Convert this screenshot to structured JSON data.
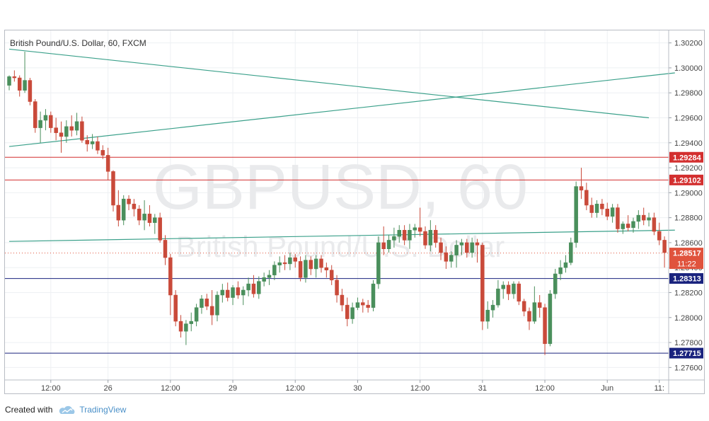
{
  "footer": {
    "created_with": "Created with",
    "brand": "TradingView",
    "logo_icon": "tradingview-cloud-icon"
  },
  "chart_data": {
    "type": "candlestick",
    "title": "British Pound/U.S. Dollar, 60, FXCM",
    "watermark": {
      "symbol": "GBPUSD, 60",
      "description": "British Pound/U.S. Dollar"
    },
    "ylim": [
      1.275,
      1.303
    ],
    "y_ticks": [
      "1.30200",
      "1.30000",
      "1.29800",
      "1.29600",
      "1.29400",
      "1.29200",
      "1.29000",
      "1.28800",
      "1.28600",
      "1.28400",
      "1.28200",
      "1.28000",
      "1.27800",
      "1.27600"
    ],
    "x_ticks": [
      {
        "bar": 8,
        "label": "12:00"
      },
      {
        "bar": 19,
        "label": "26"
      },
      {
        "bar": 31,
        "label": "12:00"
      },
      {
        "bar": 43,
        "label": "29"
      },
      {
        "bar": 55,
        "label": "12:00"
      },
      {
        "bar": 67,
        "label": "30"
      },
      {
        "bar": 79,
        "label": "12:00"
      },
      {
        "bar": 91,
        "label": "31"
      },
      {
        "bar": 103,
        "label": "12:00"
      },
      {
        "bar": 115,
        "label": "Jun"
      },
      {
        "bar": 125,
        "label": "11:"
      }
    ],
    "price_labels": [
      {
        "value": 1.29284,
        "text": "1.29284",
        "color": "#d32f2f",
        "line": true
      },
      {
        "value": 1.29102,
        "text": "1.29102",
        "color": "#d32f2f",
        "line": true
      },
      {
        "value": 1.28517,
        "text": "1.28517",
        "color": "#e0533d",
        "line": false,
        "countdown": "11:22"
      },
      {
        "value": 1.28313,
        "text": "1.28313",
        "color": "#1a237e",
        "line": true
      },
      {
        "value": 1.27715,
        "text": "1.27715",
        "color": "#1a237e",
        "line": true
      }
    ],
    "trend_lines": [
      {
        "x1": 0,
        "y1": 1.3015,
        "x2": 123,
        "y2": 1.296
      },
      {
        "x1": 0,
        "y1": 1.2937,
        "x2": 128,
        "y2": 1.2996
      },
      {
        "x1": 0,
        "y1": 1.2861,
        "x2": 128,
        "y2": 1.287
      }
    ],
    "colors": {
      "up": "#4a8f5c",
      "down": "#c94a3a",
      "trend": "#3aa08a",
      "grid": "#eef0f3"
    },
    "ohlc": [
      [
        1.2986,
        1.2994,
        1.2982,
        1.2993
      ],
      [
        1.2993,
        1.2998,
        1.2989,
        1.2992
      ],
      [
        1.2992,
        1.2994,
        1.2977,
        1.2982
      ],
      [
        1.2982,
        1.3013,
        1.298,
        1.299
      ],
      [
        1.299,
        1.2992,
        1.297,
        1.2973
      ],
      [
        1.2973,
        1.2975,
        1.2948,
        1.2952
      ],
      [
        1.2952,
        1.2965,
        1.294,
        1.2958
      ],
      [
        1.2958,
        1.2967,
        1.295,
        1.2962
      ],
      [
        1.2962,
        1.2965,
        1.2948,
        1.2952
      ],
      [
        1.2952,
        1.296,
        1.2942,
        1.2948
      ],
      [
        1.2948,
        1.2957,
        1.2932,
        1.2945
      ],
      [
        1.2945,
        1.2958,
        1.294,
        1.2953
      ],
      [
        1.2953,
        1.2962,
        1.2945,
        1.295
      ],
      [
        1.295,
        1.2964,
        1.2946,
        1.2957
      ],
      [
        1.2957,
        1.2961,
        1.294,
        1.2942
      ],
      [
        1.2942,
        1.2946,
        1.2933,
        1.2939
      ],
      [
        1.2939,
        1.2947,
        1.2935,
        1.2941
      ],
      [
        1.2941,
        1.2945,
        1.2931,
        1.2934
      ],
      [
        1.2934,
        1.2938,
        1.2927,
        1.293
      ],
      [
        1.293,
        1.2936,
        1.291,
        1.2917
      ],
      [
        1.2917,
        1.2918,
        1.2885,
        1.289
      ],
      [
        1.289,
        1.2902,
        1.2873,
        1.2878
      ],
      [
        1.2878,
        1.2898,
        1.2874,
        1.2895
      ],
      [
        1.2895,
        1.2898,
        1.2886,
        1.2891
      ],
      [
        1.2891,
        1.2895,
        1.2881,
        1.2887
      ],
      [
        1.2887,
        1.289,
        1.2874,
        1.2878
      ],
      [
        1.2878,
        1.2894,
        1.287,
        1.2883
      ],
      [
        1.2883,
        1.289,
        1.2873,
        1.2876
      ],
      [
        1.2876,
        1.2883,
        1.2867,
        1.288
      ],
      [
        1.288,
        1.2884,
        1.286,
        1.2862
      ],
      [
        1.2862,
        1.2866,
        1.2842,
        1.2848
      ],
      [
        1.2848,
        1.2851,
        1.2802,
        1.2818
      ],
      [
        1.2818,
        1.2822,
        1.2793,
        1.2797
      ],
      [
        1.2797,
        1.2802,
        1.2784,
        1.2789
      ],
      [
        1.2789,
        1.2798,
        1.2778,
        1.2795
      ],
      [
        1.2795,
        1.2804,
        1.2789,
        1.2797
      ],
      [
        1.2797,
        1.2811,
        1.2793,
        1.2808
      ],
      [
        1.2808,
        1.2818,
        1.2803,
        1.2815
      ],
      [
        1.2815,
        1.2819,
        1.2806,
        1.2809
      ],
      [
        1.2809,
        1.2822,
        1.2794,
        1.2802
      ],
      [
        1.2802,
        1.2821,
        1.2797,
        1.2818
      ],
      [
        1.2818,
        1.2827,
        1.2812,
        1.2822
      ],
      [
        1.2822,
        1.2828,
        1.2813,
        1.2816
      ],
      [
        1.2816,
        1.2826,
        1.281,
        1.2824
      ],
      [
        1.2824,
        1.2829,
        1.2815,
        1.2818
      ],
      [
        1.2818,
        1.2825,
        1.281,
        1.2822
      ],
      [
        1.2822,
        1.2832,
        1.2817,
        1.2827
      ],
      [
        1.2827,
        1.2834,
        1.2816,
        1.2819
      ],
      [
        1.2819,
        1.2833,
        1.2815,
        1.2829
      ],
      [
        1.2829,
        1.2836,
        1.2825,
        1.2832
      ],
      [
        1.2832,
        1.2838,
        1.2826,
        1.2834
      ],
      [
        1.2834,
        1.2845,
        1.283,
        1.2842
      ],
      [
        1.2842,
        1.2849,
        1.2836,
        1.2844
      ],
      [
        1.2844,
        1.285,
        1.2838,
        1.2843
      ],
      [
        1.2843,
        1.2852,
        1.2838,
        1.2848
      ],
      [
        1.2848,
        1.2851,
        1.284,
        1.2845
      ],
      [
        1.2845,
        1.2849,
        1.2829,
        1.2832
      ],
      [
        1.2832,
        1.285,
        1.2828,
        1.2846
      ],
      [
        1.2846,
        1.2849,
        1.2834,
        1.2839
      ],
      [
        1.2839,
        1.285,
        1.2832,
        1.2847
      ],
      [
        1.2847,
        1.285,
        1.2836,
        1.284
      ],
      [
        1.284,
        1.2844,
        1.2832,
        1.2838
      ],
      [
        1.2838,
        1.2842,
        1.2826,
        1.283
      ],
      [
        1.283,
        1.2834,
        1.2812,
        1.2818
      ],
      [
        1.2818,
        1.2823,
        1.2805,
        1.281
      ],
      [
        1.281,
        1.2816,
        1.2793,
        1.2799
      ],
      [
        1.2799,
        1.2812,
        1.2795,
        1.2808
      ],
      [
        1.2808,
        1.2816,
        1.2806,
        1.2812
      ],
      [
        1.2812,
        1.2815,
        1.2804,
        1.281
      ],
      [
        1.281,
        1.2814,
        1.2804,
        1.2808
      ],
      [
        1.2808,
        1.283,
        1.2805,
        1.2827
      ],
      [
        1.2827,
        1.2865,
        1.2823,
        1.286
      ],
      [
        1.286,
        1.2873,
        1.285,
        1.2855
      ],
      [
        1.2855,
        1.2866,
        1.2852,
        1.2862
      ],
      [
        1.2862,
        1.2872,
        1.2856,
        1.2865
      ],
      [
        1.2865,
        1.2874,
        1.286,
        1.287
      ],
      [
        1.287,
        1.2874,
        1.2858,
        1.2862
      ],
      [
        1.2862,
        1.2875,
        1.2855,
        1.287
      ],
      [
        1.287,
        1.2875,
        1.2864,
        1.2872
      ],
      [
        1.2872,
        1.2888,
        1.2865,
        1.2869
      ],
      [
        1.2869,
        1.2873,
        1.2855,
        1.2858
      ],
      [
        1.2858,
        1.2878,
        1.2853,
        1.287
      ],
      [
        1.287,
        1.2874,
        1.2856,
        1.286
      ],
      [
        1.286,
        1.2864,
        1.2846,
        1.2852
      ],
      [
        1.2852,
        1.2857,
        1.2839,
        1.2845
      ],
      [
        1.2845,
        1.2853,
        1.284,
        1.285
      ],
      [
        1.285,
        1.2862,
        1.284,
        1.2858
      ],
      [
        1.2858,
        1.2863,
        1.285,
        1.286
      ],
      [
        1.286,
        1.2863,
        1.2848,
        1.2852
      ],
      [
        1.2852,
        1.2864,
        1.2848,
        1.286
      ],
      [
        1.286,
        1.2863,
        1.2844,
        1.2858
      ],
      [
        1.2858,
        1.286,
        1.279,
        1.2797
      ],
      [
        1.2797,
        1.2813,
        1.2791,
        1.2806
      ],
      [
        1.2806,
        1.2814,
        1.28,
        1.281
      ],
      [
        1.281,
        1.283,
        1.2808,
        1.2823
      ],
      [
        1.2823,
        1.2829,
        1.2815,
        1.2826
      ],
      [
        1.2826,
        1.2829,
        1.2814,
        1.2819
      ],
      [
        1.2819,
        1.2829,
        1.2815,
        1.2827
      ],
      [
        1.2827,
        1.2829,
        1.281,
        1.2813
      ],
      [
        1.2813,
        1.2815,
        1.2801,
        1.2805
      ],
      [
        1.2805,
        1.2808,
        1.279,
        1.2797
      ],
      [
        1.2797,
        1.2825,
        1.2795,
        1.2812
      ],
      [
        1.2812,
        1.2818,
        1.28,
        1.2808
      ],
      [
        1.2808,
        1.2811,
        1.277,
        1.2779
      ],
      [
        1.2779,
        1.2822,
        1.2777,
        1.2819
      ],
      [
        1.2819,
        1.2839,
        1.2815,
        1.2835
      ],
      [
        1.2835,
        1.2846,
        1.283,
        1.284
      ],
      [
        1.284,
        1.285,
        1.2836,
        1.2844
      ],
      [
        1.2844,
        1.2864,
        1.2842,
        1.286
      ],
      [
        1.286,
        1.2909,
        1.2856,
        1.2905
      ],
      [
        1.2905,
        1.292,
        1.2895,
        1.2902
      ],
      [
        1.2902,
        1.2908,
        1.2886,
        1.289
      ],
      [
        1.289,
        1.2896,
        1.288,
        1.2884
      ],
      [
        1.2884,
        1.2894,
        1.288,
        1.2891
      ],
      [
        1.2891,
        1.2895,
        1.2882,
        1.2887
      ],
      [
        1.2887,
        1.2892,
        1.2878,
        1.2881
      ],
      [
        1.2881,
        1.2891,
        1.2876,
        1.2888
      ],
      [
        1.2888,
        1.2891,
        1.2868,
        1.2871
      ],
      [
        1.2871,
        1.2877,
        1.2867,
        1.2875
      ],
      [
        1.2875,
        1.2882,
        1.2869,
        1.2872
      ],
      [
        1.2872,
        1.288,
        1.2868,
        1.2877
      ],
      [
        1.2877,
        1.2886,
        1.2871,
        1.2882
      ],
      [
        1.2882,
        1.2888,
        1.2874,
        1.2878
      ],
      [
        1.2878,
        1.2884,
        1.2873,
        1.288
      ],
      [
        1.288,
        1.2884,
        1.2866,
        1.2869
      ],
      [
        1.2869,
        1.2876,
        1.2858,
        1.2862
      ],
      [
        1.2862,
        1.2865,
        1.284,
        1.2852
      ]
    ]
  }
}
